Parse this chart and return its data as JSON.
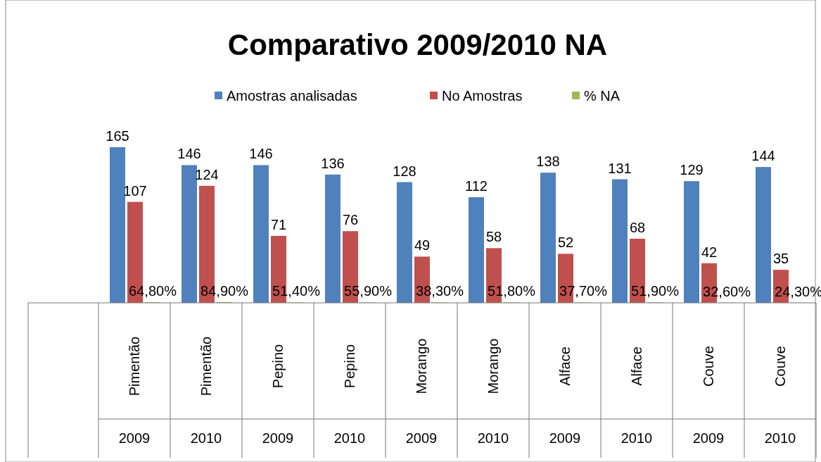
{
  "chart_data": {
    "type": "bar",
    "title": "Comparativo 2009/2010 NA",
    "categories": [
      "Pimentão",
      "Pimentão",
      "Pepino",
      "Pepino",
      "Morango",
      "Morango",
      "Alface",
      "Alface",
      "Couve",
      "Couve"
    ],
    "annotations": [
      "2009",
      "2010",
      "2009",
      "2010",
      "2009",
      "2010",
      "2009",
      "2010",
      "2009",
      "2010"
    ],
    "series": [
      {
        "name": "Amostras analisadas",
        "color": "#4f81bd",
        "values": [
          165,
          146,
          146,
          136,
          128,
          112,
          138,
          131,
          129,
          144
        ],
        "value_labels": [
          "165",
          "146",
          "146",
          "136",
          "128",
          "112",
          "138",
          "131",
          "129",
          "144"
        ]
      },
      {
        "name": "No Amostras",
        "color": "#c0504d",
        "values": [
          107,
          124,
          71,
          76,
          49,
          58,
          52,
          68,
          42,
          35
        ],
        "value_labels": [
          "107",
          "124",
          "71",
          "76",
          "49",
          "58",
          "52",
          "68",
          "42",
          "35"
        ]
      },
      {
        "name": "% NA",
        "color": "#9bbb59",
        "values": [
          0.648,
          0.849,
          0.514,
          0.559,
          0.383,
          0.518,
          0.377,
          0.519,
          0.326,
          0.243
        ],
        "value_labels": [
          "64,80%",
          "84,90%",
          "51,40%",
          "55,90%",
          "38,30%",
          "51,80%",
          "37,70%",
          "51,90%",
          "32,60%",
          "24,30%"
        ]
      }
    ],
    "legend": "top",
    "grid": false
  }
}
